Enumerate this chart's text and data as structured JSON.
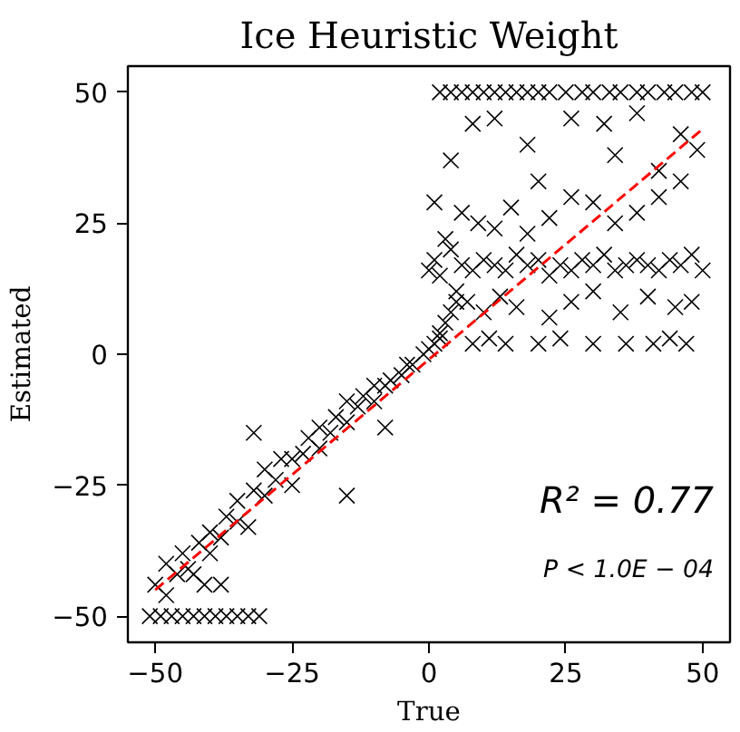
{
  "chart_data": {
    "type": "scatter",
    "title": "Ice Heuristic Weight",
    "xlabel": "True",
    "ylabel": "Estimated",
    "xlim": [
      -55,
      55
    ],
    "ylim": [
      -55,
      55
    ],
    "xticks": [
      {
        "value": -50,
        "label": "−50"
      },
      {
        "value": -25,
        "label": "−25"
      },
      0,
      25,
      50
    ],
    "yticks": [
      {
        "value": -50,
        "label": "−50"
      },
      {
        "value": -25,
        "label": "−25"
      },
      0,
      25,
      50
    ],
    "grid": false,
    "marker": "cross",
    "series": [
      {
        "color": "#000000",
        "x": [
          -51,
          -49,
          -47,
          -45,
          -43,
          -41,
          -39,
          -37,
          -35,
          -33,
          -31,
          -50,
          -48,
          -48,
          -46,
          -45,
          -44,
          -42,
          -40,
          -40,
          -38,
          -37,
          -35,
          -35,
          -33,
          -32,
          -30,
          -30,
          -28,
          -27,
          -25,
          -25,
          -23,
          -22,
          -20,
          -20,
          -18,
          -17,
          -15,
          -15,
          -13,
          -12,
          -10,
          -10,
          -8,
          -7,
          -5,
          -4,
          -3,
          -1,
          0,
          1,
          2,
          3,
          4,
          5,
          -32,
          -15,
          -8,
          -38,
          -43,
          -41,
          0,
          1,
          2,
          4,
          6,
          8,
          10,
          12,
          14,
          16,
          18,
          20,
          22,
          24,
          26,
          28,
          30,
          32,
          34,
          36,
          38,
          40,
          42,
          44,
          46,
          48,
          50,
          2,
          4,
          6,
          8,
          10,
          12,
          14,
          16,
          18,
          20,
          22,
          25,
          28,
          30,
          33,
          35,
          38,
          40,
          43,
          45,
          48,
          50,
          3,
          6,
          9,
          12,
          15,
          18,
          22,
          26,
          30,
          34,
          38,
          42,
          46,
          5,
          7,
          10,
          13,
          16,
          22,
          26,
          30,
          35,
          40,
          45,
          48,
          1,
          4,
          8,
          12,
          18,
          20,
          26,
          32,
          34,
          38,
          42,
          46,
          49,
          2,
          8,
          11,
          14,
          20,
          24,
          30,
          36,
          41,
          44,
          47
        ],
        "values": [
          -50,
          -50,
          -50,
          -50,
          -50,
          -50,
          -50,
          -50,
          -50,
          -50,
          -50,
          -44,
          -40,
          -46,
          -42,
          -38,
          -41,
          -36,
          -38,
          -34,
          -35,
          -31,
          -32,
          -28,
          -33,
          -26,
          -27,
          -22,
          -24,
          -20,
          -25,
          -20,
          -19,
          -16,
          -18,
          -14,
          -15,
          -12,
          -13,
          -9,
          -10,
          -8,
          -9,
          -6,
          -6,
          -5,
          -4,
          -2,
          -2,
          0,
          1,
          2,
          4,
          6,
          8,
          10,
          -15,
          -27,
          -14,
          -44,
          -42,
          -44,
          16,
          18,
          15,
          20,
          17,
          16,
          18,
          17,
          16,
          19,
          17,
          18,
          15,
          17,
          16,
          18,
          17,
          19,
          16,
          17,
          18,
          17,
          16,
          18,
          17,
          19,
          16,
          50,
          50,
          50,
          50,
          50,
          50,
          50,
          50,
          50,
          50,
          50,
          50,
          50,
          50,
          50,
          50,
          50,
          50,
          50,
          50,
          50,
          50,
          22,
          27,
          25,
          24,
          28,
          23,
          26,
          30,
          29,
          25,
          27,
          30,
          33,
          12,
          10,
          8,
          11,
          9,
          7,
          10,
          12,
          8,
          11,
          9,
          10,
          29,
          37,
          44,
          45,
          40,
          33,
          45,
          44,
          38,
          46,
          35,
          42,
          39,
          3,
          2,
          3,
          2,
          2,
          3,
          2,
          2,
          2,
          3,
          2
        ]
      },
      {
        "type": "line",
        "color": "#ff0000",
        "line_style": "dashed",
        "marker": "none",
        "x": [
          -50,
          50
        ],
        "values": [
          -45,
          43
        ]
      }
    ],
    "annotations": [
      "R² = 0.77",
      "P < 1.0E − 04"
    ]
  }
}
